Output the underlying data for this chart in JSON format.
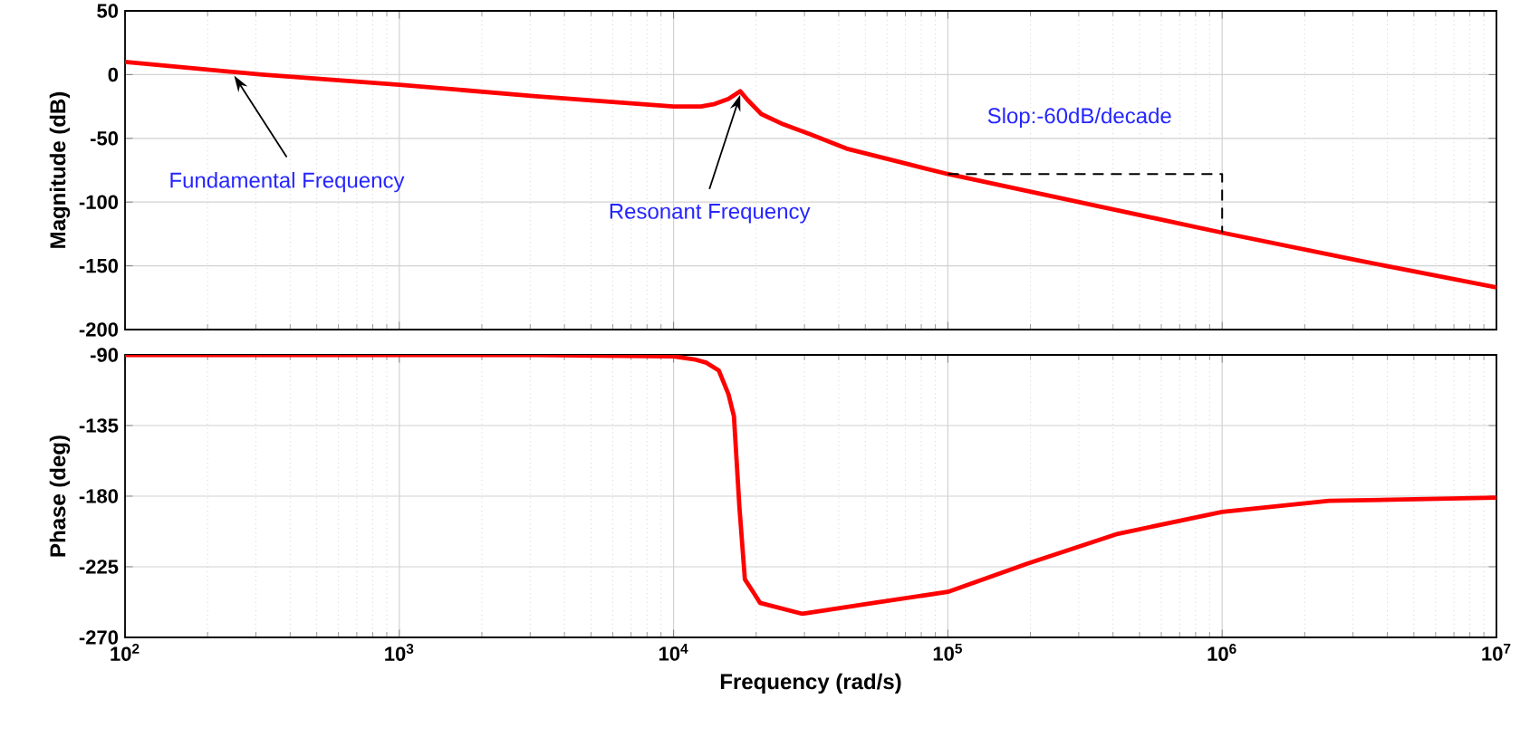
{
  "chart_data": [
    {
      "type": "line",
      "ylabel": "Magnitude (dB)",
      "log": "x",
      "xlim": [
        100,
        10000000
      ],
      "xticks": [
        100,
        1000,
        10000,
        100000,
        1000000,
        10000000
      ],
      "ylim": [
        -200,
        50
      ],
      "yticks": [
        -200,
        -150,
        -100,
        -50,
        0,
        50
      ],
      "grid": true,
      "tick_labels": "y",
      "series": [
        {
          "color": "#ff0000",
          "x": [
            100,
            316,
            1000,
            3162,
            10000,
            12589,
            14125,
            15849,
            17500,
            18621,
            20893,
            25119,
            31623,
            42658,
            70795,
            100000,
            316228,
            1000000,
            3162278,
            10000000
          ],
          "values": [
            10,
            0,
            -8,
            -17,
            -25,
            -25,
            -23,
            -19,
            -13,
            -20,
            -31,
            -39,
            -47,
            -58,
            -70,
            -78,
            -101,
            -124,
            -146,
            -167
          ]
        },
        {
          "color": "#000000",
          "line_style": "dashed",
          "x": [
            100000,
            1000000,
            1000000
          ],
          "values": [
            -78,
            -78,
            -124
          ]
        }
      ],
      "annotations": [
        {
          "text": "Fundamental Frequency",
          "x": 250,
          "y": 2
        },
        {
          "text": "Resonant Frequency",
          "x": 17500,
          "y": -13
        },
        "Slop:-60dB/decade"
      ]
    },
    {
      "type": "line",
      "ylabel": "Phase (deg)",
      "xlabel": "Frequency  (rad/s)",
      "log": "x",
      "xlim": [
        100,
        10000000
      ],
      "xticks": [
        {
          "value": 100,
          "label": "10$^{2}$"
        },
        {
          "value": 1000,
          "label": "10$^{3}$"
        },
        {
          "value": 10000,
          "label": "10$^{4}$"
        },
        {
          "value": 100000,
          "label": "10$^{5}$"
        },
        {
          "value": 1000000,
          "label": "10$^{6}$"
        },
        {
          "value": 10000000,
          "label": "10$^{7}$"
        }
      ],
      "ylim": [
        -270,
        -90
      ],
      "yticks": [
        -270,
        -225,
        -180,
        -135,
        -90
      ],
      "grid": true,
      "series": [
        {
          "color": "#ff0000",
          "x": [
            100,
            3162,
            10000,
            12023,
            13183,
            14622,
            15849,
            16596,
            17378,
            18197,
            19498,
            20654,
            29512,
            53703,
            100000,
            194984,
            416869,
            1000000,
            2454709,
            10000000
          ],
          "values": [
            -90,
            -90,
            -91,
            -93,
            -95,
            -100,
            -115,
            -129,
            -187,
            -233,
            -241,
            -248,
            -255,
            -248,
            -241,
            -223,
            -204,
            -190,
            -183,
            -181
          ]
        }
      ]
    }
  ]
}
